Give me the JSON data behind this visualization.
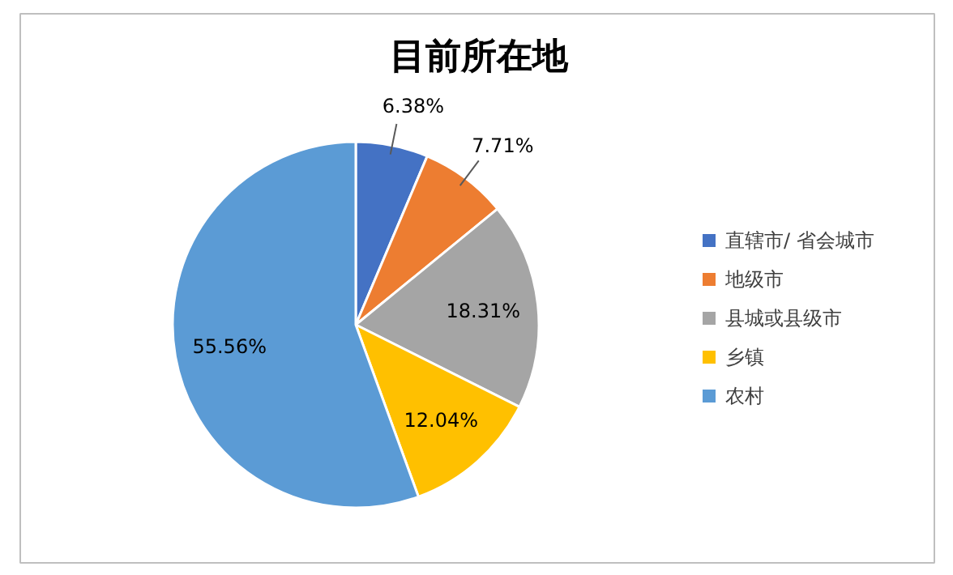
{
  "chart_data": {
    "type": "pie",
    "title": "目前所在地",
    "categories": [
      "直辖市/ 省会城市",
      "地级市",
      "县城或县级市",
      "乡镇",
      "农村"
    ],
    "values": [
      6.38,
      7.71,
      18.31,
      12.04,
      55.56
    ],
    "colors": [
      "#4472c4",
      "#ed7d31",
      "#a5a5a5",
      "#ffc000",
      "#5b9bd5"
    ],
    "value_labels": [
      "6.38%",
      "7.71%",
      "18.31%",
      "12.04%",
      "55.56%"
    ],
    "legend": "right"
  }
}
